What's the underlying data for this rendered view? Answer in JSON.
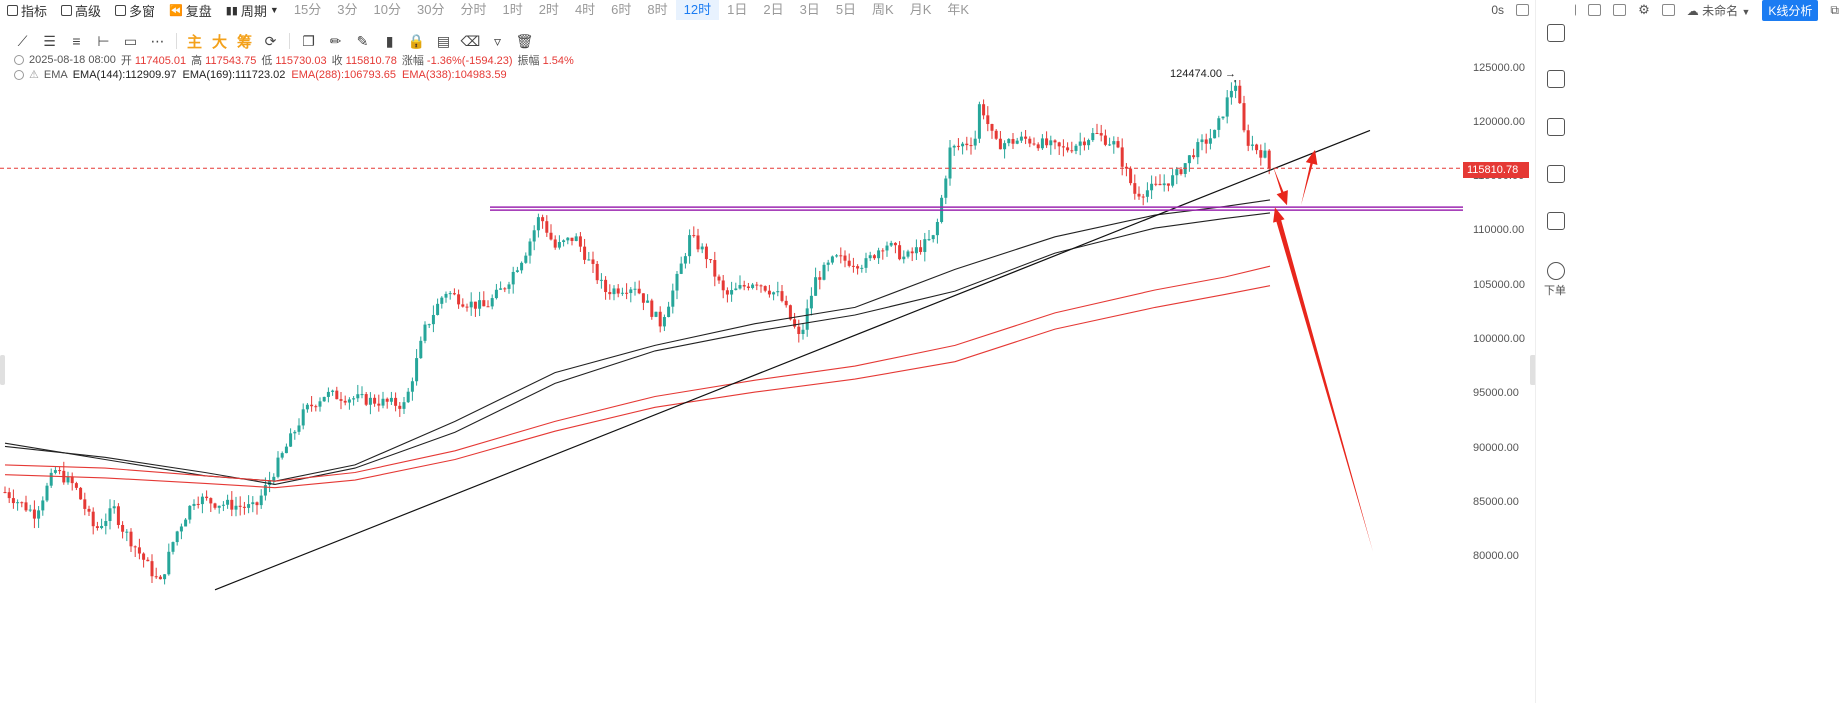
{
  "toolbar": {
    "indicators": "指标",
    "advanced": "高级",
    "multi_window": "多窗",
    "replay": "复盘",
    "period": "周期",
    "periods": [
      "15分",
      "3分",
      "10分",
      "30分",
      "分时",
      "1时",
      "2时",
      "4时",
      "6时",
      "8时",
      "12时",
      "1日",
      "2日",
      "3日",
      "5日",
      "周K",
      "月K",
      "年K"
    ],
    "active_period": "12时",
    "right": {
      "seconds": "0s",
      "layout_name": "未命名",
      "kline_button": "K线分析"
    }
  },
  "drawing_tools": {
    "main": "主",
    "big": "大",
    "chips": "筹"
  },
  "ohlc": {
    "datetime": "2025-08-18 08:00",
    "open_label": "开",
    "open": "117405.01",
    "high_label": "高",
    "high": "117543.75",
    "low_label": "低",
    "low": "115730.03",
    "close_label": "收",
    "close": "115810.78",
    "change_label": "涨幅",
    "change": "-1.36%(-1594.23)",
    "amp_label": "振幅",
    "amp": "1.54%"
  },
  "ema": {
    "label": "EMA",
    "items": [
      {
        "text": "EMA(144):112909.97",
        "color": "#222222"
      },
      {
        "text": "EMA(169):111723.02",
        "color": "#222222"
      },
      {
        "text": "EMA(288):106793.65",
        "color": "#e53935"
      },
      {
        "text": "EMA(338):104983.59",
        "color": "#e53935"
      }
    ]
  },
  "chart_data": {
    "type": "candlestick",
    "y_ticks": [
      125000,
      120000,
      115000,
      110000,
      105000,
      100000,
      95000,
      90000,
      85000,
      80000
    ],
    "y_tick_labels": [
      "125000.00",
      "120000.00",
      "115000.00",
      "110000.00",
      "105000.00",
      "100000.00",
      "95000.00",
      "90000.00",
      "85000.00",
      "80000.00"
    ],
    "ylim": [
      77000,
      127500
    ],
    "current_price": "115810.78",
    "max_label": "124474.00",
    "max_value": 124474,
    "colors": {
      "up": "#26a69a",
      "down": "#e53935",
      "ema_dark": "#222222",
      "ema_red": "#e53935",
      "support": "#9c27b0",
      "arrow": "#e8261c"
    },
    "support_level": 112100,
    "anchors": [
      {
        "t": 0,
        "p": 86000
      },
      {
        "t": 0.03,
        "p": 84000
      },
      {
        "t": 0.05,
        "p": 88000
      },
      {
        "t": 0.07,
        "p": 86500
      },
      {
        "t": 0.09,
        "p": 82500
      },
      {
        "t": 0.11,
        "p": 84500
      },
      {
        "t": 0.13,
        "p": 81000
      },
      {
        "t": 0.115,
        "p": 83000
      },
      {
        "t": 0.155,
        "p": 77500
      },
      {
        "t": 0.17,
        "p": 82000
      },
      {
        "t": 0.19,
        "p": 85500
      },
      {
        "t": 0.21,
        "p": 85000
      },
      {
        "t": 0.25,
        "p": 84500
      },
      {
        "t": 0.275,
        "p": 89000
      },
      {
        "t": 0.3,
        "p": 93500
      },
      {
        "t": 0.32,
        "p": 95000
      },
      {
        "t": 0.36,
        "p": 94500
      },
      {
        "t": 0.4,
        "p": 94000
      },
      {
        "t": 0.42,
        "p": 101000
      },
      {
        "t": 0.44,
        "p": 104500
      },
      {
        "t": 0.46,
        "p": 103500
      },
      {
        "t": 0.48,
        "p": 103000
      },
      {
        "t": 0.5,
        "p": 105000
      },
      {
        "t": 0.52,
        "p": 108000
      },
      {
        "t": 0.535,
        "p": 111500
      },
      {
        "t": 0.55,
        "p": 108500
      },
      {
        "t": 0.57,
        "p": 109500
      },
      {
        "t": 0.6,
        "p": 104500
      },
      {
        "t": 0.63,
        "p": 105000
      },
      {
        "t": 0.655,
        "p": 101500
      },
      {
        "t": 0.67,
        "p": 105000
      },
      {
        "t": 0.685,
        "p": 109500
      },
      {
        "t": 0.7,
        "p": 108000
      },
      {
        "t": 0.72,
        "p": 104000
      },
      {
        "t": 0.75,
        "p": 105500
      },
      {
        "t": 0.775,
        "p": 104000
      },
      {
        "t": 0.795,
        "p": 100000
      },
      {
        "t": 0.81,
        "p": 105500
      },
      {
        "t": 0.83,
        "p": 107500
      },
      {
        "t": 0.86,
        "p": 107000
      },
      {
        "t": 0.88,
        "p": 109000
      },
      {
        "t": 0.9,
        "p": 107500
      },
      {
        "t": 0.93,
        "p": 109500
      },
      {
        "t": 0.945,
        "p": 117500
      },
      {
        "t": 0.97,
        "p": 118500
      },
      {
        "t": 0.975,
        "p": 122000
      },
      {
        "t": 0.99,
        "p": 118000
      },
      {
        "t": 1.02,
        "p": 118500
      },
      {
        "t": 1.06,
        "p": 117500
      },
      {
        "t": 1.09,
        "p": 119000
      },
      {
        "t": 1.11,
        "p": 118000
      },
      {
        "t": 1.13,
        "p": 113500
      },
      {
        "t": 1.15,
        "p": 114000
      },
      {
        "t": 1.17,
        "p": 115000
      },
      {
        "t": 1.19,
        "p": 117500
      },
      {
        "t": 1.21,
        "p": 119000
      },
      {
        "t": 1.23,
        "p": 124000
      },
      {
        "t": 1.24,
        "p": 118500
      },
      {
        "t": 1.26,
        "p": 117000
      },
      {
        "t": 1.265,
        "p": 115800
      }
    ],
    "ema_lines": [
      {
        "name": "EMA(144)",
        "color": "#222222",
        "pts": [
          [
            0,
            90500
          ],
          [
            0.1,
            89000
          ],
          [
            0.2,
            87500
          ],
          [
            0.27,
            87000
          ],
          [
            0.35,
            88500
          ],
          [
            0.45,
            92500
          ],
          [
            0.55,
            97000
          ],
          [
            0.65,
            99500
          ],
          [
            0.75,
            101500
          ],
          [
            0.85,
            103000
          ],
          [
            0.95,
            106500
          ],
          [
            1.05,
            109500
          ],
          [
            1.15,
            111500
          ],
          [
            1.22,
            112300
          ],
          [
            1.265,
            112900
          ]
        ]
      },
      {
        "name": "EMA(169)",
        "color": "#222222",
        "pts": [
          [
            0,
            90200
          ],
          [
            0.1,
            89200
          ],
          [
            0.2,
            87800
          ],
          [
            0.27,
            86700
          ],
          [
            0.35,
            88200
          ],
          [
            0.45,
            91500
          ],
          [
            0.55,
            96000
          ],
          [
            0.65,
            99000
          ],
          [
            0.75,
            100800
          ],
          [
            0.85,
            102300
          ],
          [
            0.95,
            104500
          ],
          [
            1.05,
            108000
          ],
          [
            1.15,
            110300
          ],
          [
            1.22,
            111200
          ],
          [
            1.265,
            111700
          ]
        ]
      },
      {
        "name": "EMA(288)",
        "color": "#e53935",
        "pts": [
          [
            0,
            88500
          ],
          [
            0.1,
            88200
          ],
          [
            0.2,
            87500
          ],
          [
            0.27,
            87000
          ],
          [
            0.35,
            87800
          ],
          [
            0.45,
            89800
          ],
          [
            0.55,
            92500
          ],
          [
            0.65,
            94800
          ],
          [
            0.75,
            96300
          ],
          [
            0.85,
            97600
          ],
          [
            0.95,
            99500
          ],
          [
            1.05,
            102500
          ],
          [
            1.15,
            104600
          ],
          [
            1.22,
            105800
          ],
          [
            1.265,
            106800
          ]
        ]
      },
      {
        "name": "EMA(338)",
        "color": "#e53935",
        "pts": [
          [
            0,
            87600
          ],
          [
            0.1,
            87300
          ],
          [
            0.2,
            86800
          ],
          [
            0.27,
            86400
          ],
          [
            0.35,
            87100
          ],
          [
            0.45,
            89000
          ],
          [
            0.55,
            91600
          ],
          [
            0.65,
            93800
          ],
          [
            0.75,
            95200
          ],
          [
            0.85,
            96400
          ],
          [
            0.95,
            98000
          ],
          [
            1.05,
            101000
          ],
          [
            1.15,
            103000
          ],
          [
            1.22,
            104200
          ],
          [
            1.265,
            105000
          ]
        ]
      }
    ],
    "trendline": [
      [
        0.21,
        77000
      ],
      [
        1.365,
        119300
      ]
    ],
    "arrows": [
      {
        "from": [
          1.268,
          116000
        ],
        "to": [
          1.282,
          112400
        ]
      },
      {
        "from": [
          1.296,
          112400
        ],
        "to": [
          1.31,
          117500
        ]
      },
      {
        "from": [
          1.368,
          80500
        ],
        "to": [
          1.27,
          112200
        ]
      }
    ]
  },
  "sidebar": {
    "order_label": "下单"
  }
}
